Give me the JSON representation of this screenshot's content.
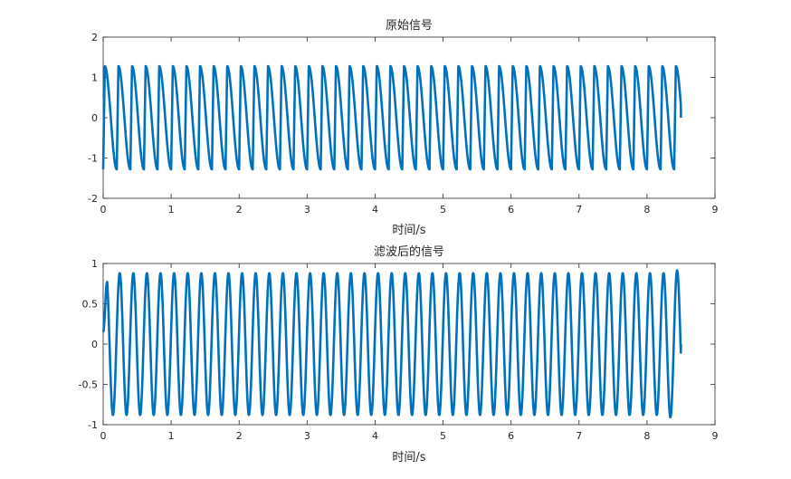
{
  "chart_data": [
    {
      "type": "line",
      "title": "原始信号",
      "xlabel": "时间/s",
      "ylabel": "",
      "xlim": [
        0,
        9
      ],
      "ylim": [
        -2,
        2
      ],
      "xticks": [
        "0",
        "1",
        "2",
        "3",
        "4",
        "5",
        "6",
        "7",
        "8",
        "9"
      ],
      "yticks": [
        "2",
        "1",
        "0",
        "-1",
        "-2"
      ],
      "grid": false,
      "series": [
        {
          "color": "#0072BD",
          "description_of_shape": "periodic sawtooth-like waveform",
          "period": 0.2,
          "amplitude": 1.28,
          "x_start": 0.0,
          "x_end": 8.5,
          "end_value": 0.0
        }
      ]
    },
    {
      "type": "line",
      "title": "滤波后的信号",
      "xlabel": "时间/s",
      "ylabel": "",
      "xlim": [
        0,
        9
      ],
      "ylim": [
        -1,
        1
      ],
      "xticks": [
        "0",
        "1",
        "2",
        "3",
        "4",
        "5",
        "6",
        "7",
        "8",
        "9"
      ],
      "yticks": [
        "1",
        "0.5",
        "0",
        "-0.5",
        "-1"
      ],
      "grid": false,
      "series": [
        {
          "color": "#0072BD",
          "period": 0.2,
          "amplitude": 0.88,
          "x_start": 0.0,
          "x_end": 8.5,
          "start_value": 0.15,
          "end_value": 0.0,
          "max_near_end": 0.92,
          "min_near_end": -0.94
        }
      ]
    }
  ]
}
